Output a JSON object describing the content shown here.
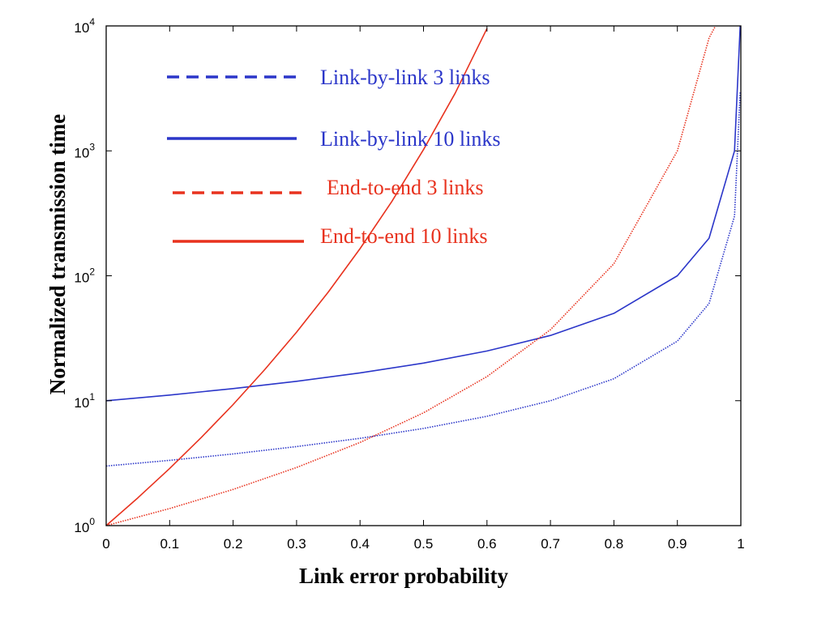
{
  "chart_data": {
    "type": "line",
    "xlabel": "Link error probability",
    "ylabel": "Normalized transmission time",
    "xlim": [
      0,
      1
    ],
    "ylim": [
      1,
      10000
    ],
    "yscale": "log",
    "x_ticks": [
      "0",
      "0.1",
      "0.2",
      "0.3",
      "0.4",
      "0.5",
      "0.6",
      "0.7",
      "0.8",
      "0.9",
      "1"
    ],
    "y_ticks": [
      {
        "base": "10",
        "exp": "0"
      },
      {
        "base": "10",
        "exp": "1"
      },
      {
        "base": "10",
        "exp": "2"
      },
      {
        "base": "10",
        "exp": "3"
      },
      {
        "base": "10",
        "exp": "4"
      }
    ],
    "grid": false,
    "legend_position": "top-left-inside",
    "series": [
      {
        "name": "Link-by-link 3 links",
        "color": "#2b36c9",
        "style": "dashed",
        "x": [
          0,
          0.1,
          0.2,
          0.3,
          0.4,
          0.5,
          0.6,
          0.7,
          0.8,
          0.9,
          0.95,
          0.99,
          0.999
        ],
        "y": [
          3,
          3.33,
          3.75,
          4.29,
          5,
          6,
          7.5,
          10,
          15,
          30,
          60,
          300,
          3000
        ]
      },
      {
        "name": "Link-by-link 10 links",
        "color": "#2b36c9",
        "style": "solid",
        "x": [
          0,
          0.1,
          0.2,
          0.3,
          0.4,
          0.5,
          0.6,
          0.7,
          0.8,
          0.9,
          0.95,
          0.99,
          0.999
        ],
        "y": [
          10,
          11.1,
          12.5,
          14.3,
          16.7,
          20,
          25,
          33.3,
          50,
          100,
          200,
          1000,
          10000
        ]
      },
      {
        "name": "End-to-end 3 links",
        "color": "#e8321e",
        "style": "dashed",
        "x": [
          0,
          0.1,
          0.2,
          0.3,
          0.4,
          0.5,
          0.6,
          0.7,
          0.8,
          0.9,
          0.95,
          0.96
        ],
        "y": [
          1,
          1.37,
          1.95,
          2.92,
          4.63,
          8,
          15.6,
          37,
          125,
          1000,
          8000,
          10000
        ]
      },
      {
        "name": "End-to-end 10 links",
        "color": "#e8321e",
        "style": "solid",
        "x": [
          0,
          0.05,
          0.1,
          0.15,
          0.2,
          0.25,
          0.3,
          0.35,
          0.4,
          0.45,
          0.5,
          0.55,
          0.6
        ],
        "y": [
          1,
          1.67,
          2.87,
          5.08,
          9.31,
          17.8,
          35.4,
          74.1,
          165,
          393,
          1024,
          2906,
          9537
        ]
      }
    ]
  }
}
